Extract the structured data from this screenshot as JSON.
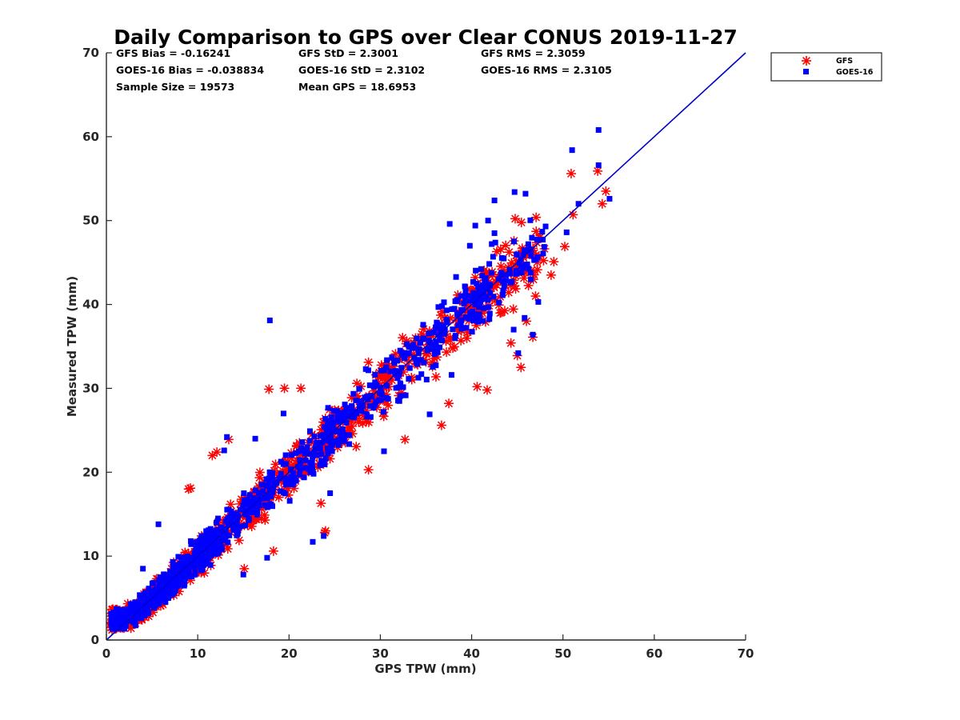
{
  "chart_data": {
    "type": "scatter",
    "title": "Daily Comparison to GPS over Clear CONUS 2019-11-27",
    "xlabel": "GPS TPW (mm)",
    "ylabel": "Measured TPW (mm)",
    "xlim": [
      0,
      70
    ],
    "ylim": [
      0,
      70
    ],
    "xticks": [
      "0",
      "10",
      "20",
      "30",
      "40",
      "50",
      "60",
      "70"
    ],
    "yticks": [
      "0",
      "10",
      "20",
      "30",
      "40",
      "50",
      "60",
      "70"
    ],
    "grid": false,
    "legend_position": "outside-top-right",
    "reference_line": {
      "name": "1:1 line",
      "color": "#0000cc",
      "x": [
        0,
        70
      ],
      "y": [
        0,
        70
      ]
    },
    "stats": [
      [
        "GFS Bias = -0.16241",
        "GFS StD = 2.3001",
        "GFS RMS = 2.3059"
      ],
      [
        "GOES-16 Bias = -0.038834",
        "GOES-16 StD = 2.3102",
        "GOES-16 RMS = 2.3105"
      ],
      [
        "Sample Size = 19573",
        "Mean GPS = 18.6953"
      ]
    ],
    "series": [
      {
        "name": "GFS",
        "marker": "asterisk",
        "color": "#ff0000",
        "sample_size": 19573,
        "bias": -0.16241,
        "std": 2.3001,
        "outliers": [
          [
            9.2,
            18.1
          ],
          [
            24.0,
            13.0
          ],
          [
            28.7,
            20.3
          ],
          [
            32.7,
            23.9
          ],
          [
            41.7,
            29.8
          ],
          [
            45.0,
            33.9
          ],
          [
            46.7,
            36.1
          ],
          [
            48.7,
            43.5
          ],
          [
            50.2,
            46.9
          ],
          [
            50.9,
            55.6
          ],
          [
            51.1,
            50.7
          ],
          [
            53.8,
            55.9
          ],
          [
            54.3,
            52.0
          ],
          [
            54.7,
            53.5
          ],
          [
            12.1,
            22.4
          ],
          [
            17.8,
            29.9
          ],
          [
            21.3,
            30.0
          ],
          [
            15.1,
            8.5
          ],
          [
            9.0,
            18.0
          ],
          [
            23.5,
            16.3
          ],
          [
            36.7,
            25.6
          ],
          [
            44.3,
            35.4
          ],
          [
            46.0,
            38.0
          ],
          [
            49.0,
            45.1
          ],
          [
            37.5,
            28.2
          ],
          [
            40.6,
            30.2
          ],
          [
            19.5,
            30.0
          ],
          [
            13.4,
            23.9
          ],
          [
            11.6,
            22.0
          ],
          [
            28.7,
            33.1
          ],
          [
            23.9,
            12.8
          ],
          [
            18.3,
            10.6
          ],
          [
            45.4,
            32.5
          ],
          [
            47.0,
            41.0
          ],
          [
            3.0,
            1.9
          ],
          [
            1.4,
            2.4
          ]
        ]
      },
      {
        "name": "GOES-16",
        "marker": "square",
        "color": "#0000ff",
        "sample_size": 19573,
        "bias": -0.038834,
        "std": 2.3102,
        "outliers": [
          [
            17.9,
            38.1
          ],
          [
            53.9,
            60.8
          ],
          [
            51.0,
            58.4
          ],
          [
            44.7,
            53.4
          ],
          [
            45.9,
            53.2
          ],
          [
            42.5,
            52.4
          ],
          [
            41.8,
            50.0
          ],
          [
            37.6,
            49.6
          ],
          [
            40.4,
            49.4
          ],
          [
            42.5,
            48.5
          ],
          [
            50.4,
            48.6
          ],
          [
            53.9,
            56.6
          ],
          [
            51.7,
            52.0
          ],
          [
            55.1,
            52.6
          ],
          [
            48.1,
            49.3
          ],
          [
            39.8,
            47.0
          ],
          [
            42.2,
            47.2
          ],
          [
            46.3,
            46.5
          ],
          [
            5.7,
            13.8
          ],
          [
            4.0,
            8.5
          ],
          [
            23.8,
            12.4
          ],
          [
            15.0,
            7.8
          ],
          [
            17.6,
            9.8
          ],
          [
            22.6,
            11.7
          ],
          [
            13.2,
            24.2
          ],
          [
            16.3,
            24.0
          ],
          [
            28.5,
            29.0
          ],
          [
            30.4,
            22.5
          ],
          [
            35.4,
            26.9
          ],
          [
            45.1,
            34.2
          ],
          [
            44.6,
            37.0
          ],
          [
            45.8,
            38.4
          ],
          [
            47.3,
            40.3
          ],
          [
            12.9,
            22.6
          ],
          [
            19.4,
            27.0
          ],
          [
            1.5,
            3.0
          ],
          [
            0.5,
            3.1
          ],
          [
            24.5,
            17.5
          ],
          [
            37.8,
            31.6
          ],
          [
            43.4,
            41.1
          ],
          [
            46.7,
            36.4
          ]
        ]
      }
    ]
  },
  "legend": {
    "items": [
      "GFS",
      "GOES-16"
    ]
  }
}
